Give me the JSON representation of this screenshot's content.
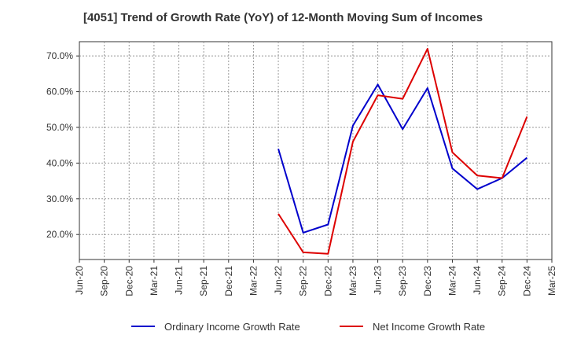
{
  "chart_data": {
    "type": "line",
    "title": "[4051]  Trend of Growth Rate (YoY) of 12-Month Moving Sum of Incomes",
    "xlabel": "",
    "ylabel": "",
    "categories": [
      "Jun-20",
      "Sep-20",
      "Dec-20",
      "Mar-21",
      "Jun-21",
      "Sep-21",
      "Dec-21",
      "Mar-22",
      "Jun-22",
      "Sep-22",
      "Dec-22",
      "Mar-23",
      "Jun-23",
      "Sep-23",
      "Dec-23",
      "Mar-24",
      "Jun-24",
      "Sep-24",
      "Dec-24",
      "Mar-25"
    ],
    "y_ticks": [
      "20.0%",
      "30.0%",
      "40.0%",
      "50.0%",
      "60.0%",
      "70.0%"
    ],
    "y_tick_values": [
      20,
      30,
      40,
      50,
      60,
      70
    ],
    "ylim": [
      13,
      74
    ],
    "grid": true,
    "legend_position": "bottom",
    "series": [
      {
        "name": "Ordinary Income Growth Rate",
        "color": "#0000cc",
        "values": [
          null,
          null,
          null,
          null,
          null,
          null,
          null,
          null,
          44.0,
          20.5,
          22.8,
          50.5,
          62.0,
          49.5,
          61.0,
          38.5,
          32.7,
          35.8,
          41.5,
          null
        ]
      },
      {
        "name": "Net Income Growth Rate",
        "color": "#dd0000",
        "values": [
          null,
          null,
          null,
          null,
          null,
          null,
          null,
          null,
          25.8,
          15.0,
          14.6,
          46.0,
          59.0,
          58.0,
          72.0,
          43.0,
          36.5,
          35.8,
          53.0,
          null
        ]
      }
    ]
  }
}
